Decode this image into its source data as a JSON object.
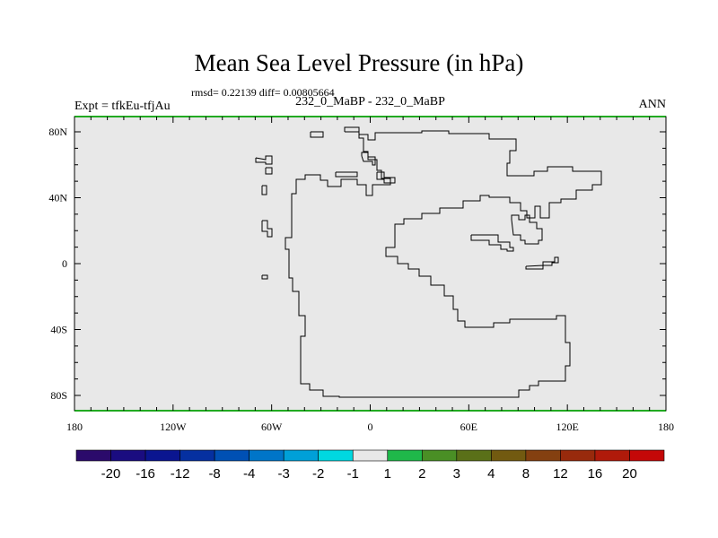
{
  "title": "Mean Sea Level Pressure (in hPa)",
  "stats": "rmsd= 0.22139 diff= 0.00805664",
  "experiment": "Expt = tfkEu-tfjAu",
  "period": "232_0_MaBP - 232_0_MaBP",
  "season": "ANN",
  "map": {
    "background_color": "#e8e8e8",
    "coast_color": "#000000",
    "frame_accent_color": "#22aa22",
    "x_ticks": [
      {
        "value": -180,
        "label": "180"
      },
      {
        "value": -120,
        "label": "120W"
      },
      {
        "value": -60,
        "label": "60W"
      },
      {
        "value": 0,
        "label": "0"
      },
      {
        "value": 60,
        "label": "60E"
      },
      {
        "value": 120,
        "label": "120E"
      },
      {
        "value": 180,
        "label": "180"
      }
    ],
    "y_ticks": [
      {
        "value": 80,
        "label": "80N"
      },
      {
        "value": 40,
        "label": "40N"
      },
      {
        "value": 0,
        "label": "0"
      },
      {
        "value": -40,
        "label": "40S"
      },
      {
        "value": -80,
        "label": "80S"
      }
    ]
  },
  "colorbar": {
    "colors": [
      "#2b0a6b",
      "#1a0c80",
      "#0a1590",
      "#0530a0",
      "#0050b4",
      "#0075c8",
      "#00a0d8",
      "#00d8e0",
      "#e8e8e8",
      "#1fb84a",
      "#4a8f25",
      "#5a7018",
      "#725a10",
      "#844010",
      "#982a0c",
      "#b01a0a",
      "#c40808"
    ],
    "labels": [
      "-20",
      "-16",
      "-12",
      "-8",
      "-4",
      "-3",
      "-2",
      "-1",
      "1",
      "2",
      "3",
      "4",
      "8",
      "12",
      "16",
      "20"
    ]
  }
}
